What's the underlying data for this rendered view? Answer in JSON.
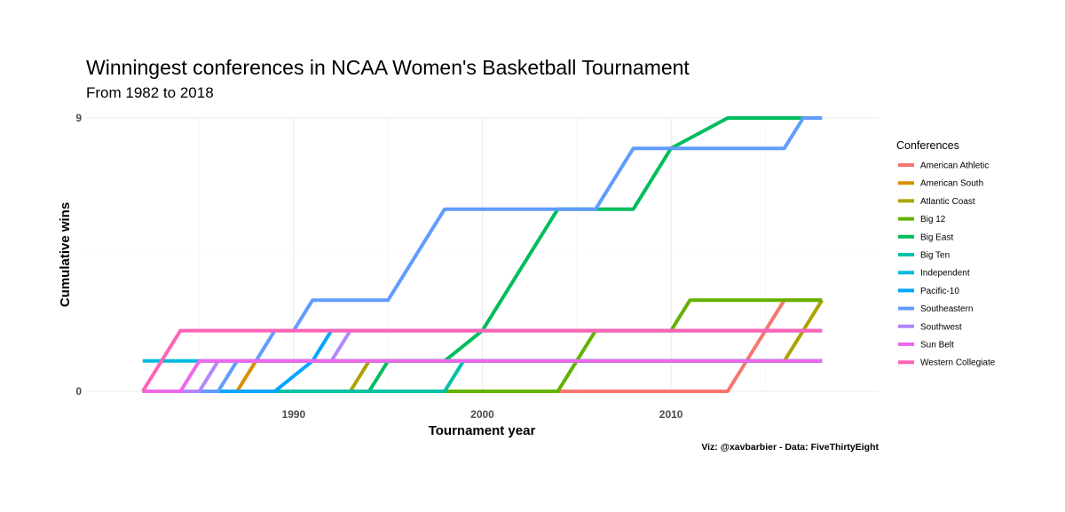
{
  "chart_data": {
    "type": "line",
    "title": "Winningest conferences in NCAA Women's Basketball Tournament",
    "subtitle": "From 1982 to 2018",
    "xlabel": "Tournament year",
    "ylabel": "Cumulative wins",
    "caption": "Viz: @xavbarbier - Data: FiveThirtyEight",
    "xlim": [
      1979,
      2021
    ],
    "ylim": [
      0,
      9
    ],
    "x_ticks": [
      1990,
      2000,
      2010
    ],
    "y_ticks": [
      0,
      9
    ],
    "legend_title": "Conferences",
    "legend_position": "right",
    "series": [
      {
        "name": "American Athletic",
        "color": "#F8766D",
        "points": [
          [
            2004,
            0
          ],
          [
            2013,
            0
          ],
          [
            2016,
            3
          ],
          [
            2018,
            3
          ]
        ]
      },
      {
        "name": "American South",
        "color": "#DB8E00",
        "points": [
          [
            1982,
            0
          ],
          [
            1987,
            0
          ],
          [
            1988,
            1
          ],
          [
            2018,
            1
          ]
        ]
      },
      {
        "name": "Atlantic Coast",
        "color": "#AEA200",
        "points": [
          [
            1982,
            0
          ],
          [
            1993,
            0
          ],
          [
            1994,
            1
          ],
          [
            2016,
            1
          ],
          [
            2017,
            2
          ],
          [
            2018,
            3
          ]
        ]
      },
      {
        "name": "Big 12",
        "color": "#64B200",
        "points": [
          [
            1982,
            0
          ],
          [
            2004,
            0
          ],
          [
            2006,
            2
          ],
          [
            2010,
            2
          ],
          [
            2011,
            3
          ],
          [
            2018,
            3
          ]
        ]
      },
      {
        "name": "Big East",
        "color": "#00BD5C",
        "points": [
          [
            1982,
            0
          ],
          [
            1994,
            0
          ],
          [
            1995,
            1
          ],
          [
            1998,
            1
          ],
          [
            2000,
            2
          ],
          [
            2004,
            6
          ],
          [
            2008,
            6
          ],
          [
            2010,
            8
          ],
          [
            2013,
            9
          ],
          [
            2018,
            9
          ]
        ]
      },
      {
        "name": "Big Ten",
        "color": "#00C1A7",
        "points": [
          [
            1982,
            0
          ],
          [
            1998,
            0
          ],
          [
            1999,
            1
          ],
          [
            2018,
            1
          ]
        ]
      },
      {
        "name": "Independent",
        "color": "#00BADE",
        "points": [
          [
            1982,
            1
          ],
          [
            2018,
            1
          ]
        ]
      },
      {
        "name": "Pacific-10",
        "color": "#00A6FF",
        "points": [
          [
            1982,
            0
          ],
          [
            1989,
            0
          ],
          [
            1991,
            1
          ],
          [
            1992,
            2
          ],
          [
            2018,
            2
          ]
        ]
      },
      {
        "name": "Southeastern",
        "color": "#619CFF",
        "points": [
          [
            1982,
            0
          ],
          [
            1986,
            0
          ],
          [
            1987,
            1
          ],
          [
            1988,
            1
          ],
          [
            1989,
            2
          ],
          [
            1990,
            2
          ],
          [
            1991,
            3
          ],
          [
            1995,
            3
          ],
          [
            1998,
            6
          ],
          [
            2006,
            6
          ],
          [
            2008,
            8
          ],
          [
            2016,
            8
          ],
          [
            2017,
            9
          ],
          [
            2018,
            9
          ]
        ]
      },
      {
        "name": "Southwest",
        "color": "#B385FF",
        "points": [
          [
            1982,
            0
          ],
          [
            1985,
            0
          ],
          [
            1986,
            1
          ],
          [
            1992,
            1
          ],
          [
            1993,
            2
          ],
          [
            2018,
            2
          ]
        ]
      },
      {
        "name": "Sun Belt",
        "color": "#EF67EB",
        "points": [
          [
            1982,
            0
          ],
          [
            1984,
            0
          ],
          [
            1985,
            1
          ],
          [
            2018,
            1
          ]
        ]
      },
      {
        "name": "Western Collegiate",
        "color": "#FF63B6",
        "points": [
          [
            1982,
            0
          ],
          [
            1984,
            2
          ],
          [
            2018,
            2
          ]
        ]
      }
    ]
  }
}
